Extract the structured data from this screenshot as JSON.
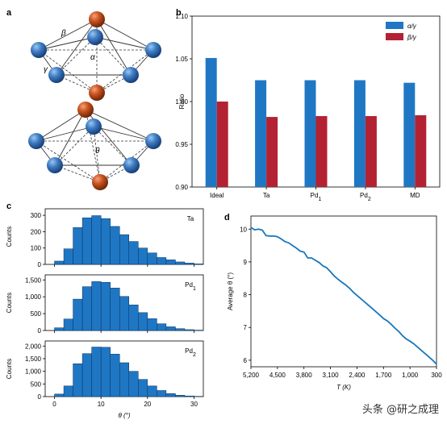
{
  "panels": {
    "a": {
      "letter": "a",
      "angle_labels": {
        "beta": "β",
        "gamma": "γ",
        "alpha": "α",
        "theta": "θ"
      }
    },
    "b": {
      "letter": "b"
    },
    "c": {
      "letter": "c"
    },
    "d": {
      "letter": "d"
    }
  },
  "watermark": "头条 @研之成理",
  "colors": {
    "blue": "#1f77c4",
    "red": "#b32232",
    "line": "#1a75bb",
    "atom_blue": "#2f6db3",
    "atom_orange": "#c8501e"
  },
  "chart_data": [
    {
      "panel": "b",
      "type": "bar",
      "categories": [
        "Ideal",
        "Ta",
        "Pd",
        "Pd",
        "MD"
      ],
      "category_subscripts": [
        "",
        "",
        "1",
        "2",
        ""
      ],
      "series": [
        {
          "name": "α/γ",
          "values": [
            1.051,
            1.025,
            1.025,
            1.025,
            1.022
          ]
        },
        {
          "name": "β/γ",
          "values": [
            1.0,
            0.982,
            0.983,
            0.983,
            0.984
          ]
        }
      ],
      "ylabel": "Ratio",
      "ylim": [
        0.9,
        1.1
      ],
      "yticks": [
        "0.90",
        "0.95",
        "1.00",
        "1.05",
        "1.10"
      ],
      "legend": "top-right"
    },
    {
      "panel": "c",
      "type": "bar",
      "subpanels": [
        {
          "label": "Ta",
          "subscript": "",
          "ylabel": "Counts",
          "ylim": [
            0,
            340
          ],
          "yticks": [
            "0",
            "100",
            "200",
            "300"
          ],
          "values": [
            20,
            95,
            225,
            285,
            298,
            280,
            232,
            182,
            140,
            100,
            70,
            42,
            28,
            15,
            8,
            3
          ]
        },
        {
          "label": "Pd",
          "subscript": "1",
          "ylabel": "Counts",
          "ylim": [
            0,
            1650
          ],
          "yticks": [
            "0",
            "500",
            "1,000",
            "1,500"
          ],
          "values": [
            80,
            340,
            930,
            1300,
            1450,
            1430,
            1260,
            1010,
            760,
            530,
            350,
            200,
            110,
            55,
            25,
            10
          ]
        },
        {
          "label": "Pd",
          "subscript": "2",
          "ylabel": "Counts",
          "ylim": [
            0,
            2200
          ],
          "yticks": [
            "0",
            "500",
            "1,000",
            "1,500",
            "2,000"
          ],
          "values": [
            100,
            420,
            1300,
            1700,
            1960,
            1950,
            1680,
            1340,
            1000,
            680,
            420,
            240,
            120,
            55,
            25,
            10
          ]
        }
      ],
      "bin_start": 0,
      "bin_width": 2,
      "xlabel": "θ (°)",
      "xlim": [
        -2,
        32
      ],
      "xticks": [
        "0",
        "10",
        "20",
        "30"
      ]
    },
    {
      "panel": "d",
      "type": "line",
      "xlabel": "T (K)",
      "ylabel": "Average θ (°)",
      "xlim": [
        5200,
        300
      ],
      "ylim": [
        5.8,
        10.4
      ],
      "xticks": [
        "5,200",
        "4,500",
        "3,800",
        "3,100",
        "2,400",
        "1,700",
        "1,000",
        "300"
      ],
      "yticks": [
        "6",
        "7",
        "8",
        "9",
        "10"
      ],
      "x": [
        5200,
        5100,
        5000,
        4900,
        4800,
        4700,
        4600,
        4500,
        4400,
        4300,
        4200,
        4100,
        4000,
        3900,
        3800,
        3700,
        3600,
        3500,
        3400,
        3300,
        3200,
        3100,
        3000,
        2900,
        2800,
        2700,
        2600,
        2500,
        2400,
        2300,
        2200,
        2100,
        2000,
        1900,
        1800,
        1700,
        1600,
        1500,
        1400,
        1300,
        1200,
        1100,
        1000,
        900,
        800,
        700,
        600,
        500,
        400,
        300
      ],
      "y": [
        10.05,
        9.98,
        10.0,
        9.97,
        9.8,
        9.79,
        9.79,
        9.77,
        9.7,
        9.62,
        9.58,
        9.5,
        9.42,
        9.33,
        9.3,
        9.12,
        9.12,
        9.05,
        8.98,
        8.88,
        8.82,
        8.7,
        8.57,
        8.47,
        8.38,
        8.3,
        8.2,
        8.08,
        7.98,
        7.88,
        7.78,
        7.68,
        7.58,
        7.48,
        7.38,
        7.27,
        7.2,
        7.1,
        6.98,
        6.88,
        6.75,
        6.65,
        6.58,
        6.5,
        6.4,
        6.3,
        6.2,
        6.1,
        6.0,
        5.88
      ]
    }
  ]
}
